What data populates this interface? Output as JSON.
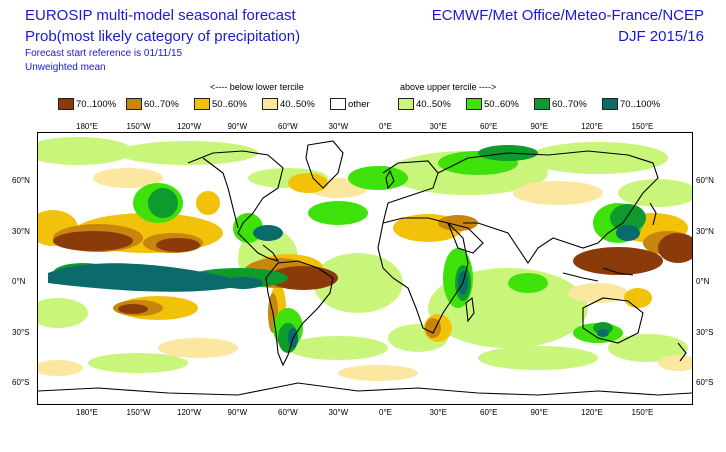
{
  "header": {
    "title_line1": "EUROSIP multi-model seasonal forecast",
    "title_line2": "Prob(most likely category of precipitation)",
    "start_reference": "Forecast start reference is 01/11/15",
    "mean_type": "Unweighted mean",
    "centres": "ECMWF/Met Office/Meteo-France/NCEP",
    "season": "DJF 2015/16"
  },
  "legend": {
    "below_label": "<---- below lower tercile",
    "above_label": "above upper tercile ---->",
    "items": [
      {
        "label": "70..100%",
        "color": "#8b3a0a"
      },
      {
        "label": "60..70%",
        "color": "#c8860e"
      },
      {
        "label": "50..60%",
        "color": "#f2c20a"
      },
      {
        "label": "40..50%",
        "color": "#fbe7a0"
      },
      {
        "label": "other",
        "color": "#ffffff"
      },
      {
        "label": "40..50%",
        "color": "#c8f57a"
      },
      {
        "label": "50..60%",
        "color": "#3ee10a"
      },
      {
        "label": "60..70%",
        "color": "#0f9a2d"
      },
      {
        "label": "70..100%",
        "color": "#0b6b6b"
      }
    ]
  },
  "axes": {
    "lon_top": [
      "180°E",
      "150°W",
      "120°W",
      "90°W",
      "60°W",
      "30°W",
      "0°E",
      "30°E",
      "60°E",
      "90°E",
      "120°E",
      "150°E"
    ],
    "lon_bottom": [
      "180°E",
      "150°W",
      "120°W",
      "90°W",
      "60°W",
      "30°W",
      "0°E",
      "30°E",
      "60°E",
      "90°E",
      "120°E",
      "150°E"
    ],
    "lat_left": [
      "60°N",
      "30°N",
      "0°N",
      "30°S",
      "60°S"
    ],
    "lat_right": [
      "60°N",
      "30°N",
      "0°N",
      "30°S",
      "60°S"
    ]
  }
}
